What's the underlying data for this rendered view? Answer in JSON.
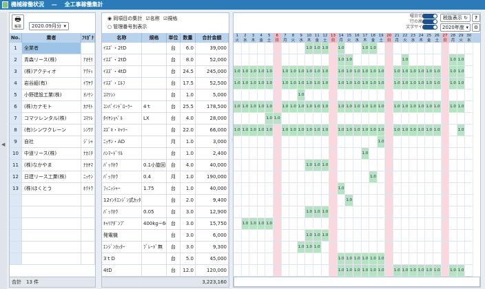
{
  "title": "機械稼働状況",
  "title_sep": "—",
  "subtitle": "全工事稼働集計",
  "toolbar": {
    "print_label": "帳票",
    "month_value": "2020.09月分",
    "radio_all": "同項目の集計",
    "check_name": "名称",
    "check_spec": "規格",
    "radio_mgmt": "管理番号別表示",
    "header_toggle": "曜日切替",
    "row_height": "行の高さ",
    "font_size": "文字サイズ",
    "tax_button": "税抜表示",
    "help_button": "?",
    "year_select": "2020年度"
  },
  "left": {
    "headers": [
      "No.",
      "業者",
      "ﾌﾘｶﾞﾅ"
    ],
    "rows": [
      [
        "1",
        "全業者",
        ""
      ],
      [
        "2",
        "青森リース(株)",
        "ｱｵﾓﾘ"
      ],
      [
        "3",
        "(株)アクティオ",
        "ｱｸﾃｨ"
      ],
      [
        "4",
        "岩谷組(有)",
        "ｲﾜﾔｸ"
      ],
      [
        "5",
        "小野建設工業(株)",
        "ｵﾉｹﾝ"
      ],
      [
        "6",
        "(株)カナモト",
        "ｶﾅﾓﾄ"
      ],
      [
        "7",
        "コマツレンタル(株)",
        "ｺﾏﾂﾚ"
      ],
      [
        "8",
        "(有)シンワクレーン",
        "ｼﾝﾜｸ"
      ],
      [
        "9",
        "自社",
        "ｼﾞｼｬ"
      ],
      [
        "10",
        "中道リース(株)",
        "ﾅｶﾐﾁ"
      ],
      [
        "11",
        "(株)なかやま",
        "ﾅｶﾔﾏ"
      ],
      [
        "12",
        "日建リース工業(株)",
        "ﾆｯｹﾝ"
      ],
      [
        "13",
        "(株)ほくとう",
        "ﾎｸﾄｳ"
      ]
    ],
    "footer_label": "合計",
    "footer_count": "13 件"
  },
  "middle": {
    "headers": [
      "名称",
      "規格",
      "単位",
      "数量",
      "合計金額"
    ],
    "rows": [
      [
        "ｲｽｽﾞ・2tD",
        "",
        "台",
        "6.0",
        "39,000"
      ],
      [
        "ｲｽｽﾞ・2tD",
        "",
        "台",
        "8.0",
        "52,000"
      ],
      [
        "ｲｽｽﾞ・4tD",
        "",
        "台",
        "24.5",
        "245,000"
      ],
      [
        "ｲｽｽﾞ・ｴﾙﾌ",
        "",
        "台",
        "17.5",
        "52,500"
      ],
      [
        "ｺﾏﾂｼﾝ",
        "",
        "台",
        "1.0",
        "5,000"
      ],
      [
        "ｺﾝﾊﾞｲﾝﾄﾞﾛｰﾗｰ",
        "4ｔ",
        "台",
        "25.5",
        "178,500"
      ],
      [
        "ﾀｲﾔｼｮﾍﾞﾙ",
        "LX",
        "台",
        "4.0",
        "28,000"
      ],
      [
        "ｽｽﾞｷ・ｷｬﾘｰ",
        "",
        "台",
        "22.0",
        "66,000"
      ],
      [
        "ﾆｯｻﾝ・AD",
        "",
        "月",
        "1.0",
        "3,000"
      ],
      [
        "ﾊﾝﾏｰﾄﾞﾘﾙ",
        "",
        "台",
        "1.0",
        "2,400"
      ],
      [
        "ﾊﾞｯｸﾎｳ",
        "0.1小旋回",
        "台",
        "4.0",
        "40,000"
      ],
      [
        "ﾊﾞｯｸﾎｳ",
        "0.4",
        "月",
        "1.0",
        "190,000"
      ],
      [
        "ﾌｨﾆｯｼｬｰ",
        "1.75",
        "台",
        "1.0",
        "40,000"
      ],
      [
        "12ｲﾝﾁｴﾝｼﾞﾝ式ｶｯﾀｰ",
        "",
        "台",
        "2.0",
        "9,400"
      ],
      [
        "ﾊﾞｯｸﾎｳ",
        "0.05",
        "台",
        "3.0",
        "12,900"
      ],
      [
        "ｷｬﾘｱﾀﾞﾝﾌﾟ",
        "400kg~60",
        "台",
        "3.0",
        "15,750"
      ],
      [
        "発電機",
        "",
        "台",
        "3.0",
        "6,000"
      ],
      [
        "ｴﾝｼﾞﾝｶｯﾀｰ",
        "ﾌﾞﾚｰﾄﾞ無",
        "台",
        "3.0",
        "9,300"
      ],
      [
        "3ｔD",
        "",
        "台",
        "5.0",
        "45,000"
      ],
      [
        "4tD",
        "",
        "台",
        "12.0",
        "120,000"
      ]
    ],
    "footer_total": "3,223,160"
  },
  "calendar": {
    "days": [
      "1",
      "2",
      "3",
      "4",
      "5",
      "6",
      "7",
      "8",
      "9",
      "10",
      "11",
      "12",
      "13",
      "14",
      "15",
      "16",
      "17",
      "18",
      "19",
      "20",
      "21",
      "22",
      "23",
      "24",
      "25",
      "26",
      "27",
      "28",
      "29",
      "30"
    ],
    "weekdays": [
      "火",
      "水",
      "木",
      "金",
      "土",
      "日",
      "月",
      "火",
      "水",
      "木",
      "金",
      "土",
      "日",
      "月",
      "火",
      "水",
      "木",
      "金",
      "土",
      "日",
      "月",
      "火",
      "水",
      "木",
      "金",
      "土",
      "日",
      "月",
      "火",
      "水"
    ],
    "sundays": [
      6,
      13,
      20,
      27
    ],
    "cell_value": "1.0",
    "cells": [
      [
        [
          10,
          11,
          12,
          14,
          17,
          18
        ]
      ],
      [
        [
          14,
          15,
          22,
          28,
          29
        ]
      ],
      [
        [
          1,
          2,
          3,
          4,
          5,
          7,
          8,
          9,
          10,
          11,
          12,
          14,
          15,
          16,
          17,
          18,
          19,
          21,
          22,
          23,
          24,
          25,
          26,
          28,
          29
        ]
      ],
      [
        [
          1,
          2,
          3,
          4,
          5,
          7,
          8,
          9,
          10,
          11,
          12,
          14,
          15,
          16,
          17,
          18,
          19,
          21,
          22,
          23,
          24,
          25,
          26,
          28,
          29
        ]
      ],
      [
        [
          9
        ]
      ],
      [
        [
          1,
          2,
          3,
          4,
          5,
          7,
          8,
          9,
          10,
          11,
          12,
          14,
          15,
          16,
          17,
          18,
          19,
          21,
          22,
          23,
          24,
          25,
          26,
          28,
          29
        ]
      ],
      [
        [
          5,
          6
        ]
      ],
      [
        [
          1,
          2,
          3,
          4,
          5,
          7,
          8,
          9,
          10,
          11,
          12,
          14,
          15,
          16,
          17,
          18,
          19,
          21,
          22,
          23,
          24,
          25,
          26,
          29
        ]
      ],
      [
        [
          19
        ]
      ],
      [
        [
          17
        ]
      ],
      [
        [
          10,
          11,
          12
        ]
      ],
      [
        [
          18
        ]
      ],
      [
        [
          14
        ]
      ],
      [
        [
          15
        ]
      ],
      [
        [
          10,
          11,
          12
        ]
      ],
      [
        [
          2,
          3,
          4,
          5
        ]
      ],
      [
        [
          10,
          11,
          12
        ]
      ],
      [
        [
          9,
          10,
          11
        ]
      ],
      [
        [
          14,
          15,
          16,
          17,
          18,
          19
        ]
      ],
      [
        [
          14,
          15,
          16,
          17,
          18,
          19,
          21,
          22,
          23,
          24,
          25,
          26,
          28,
          29
        ]
      ]
    ]
  }
}
